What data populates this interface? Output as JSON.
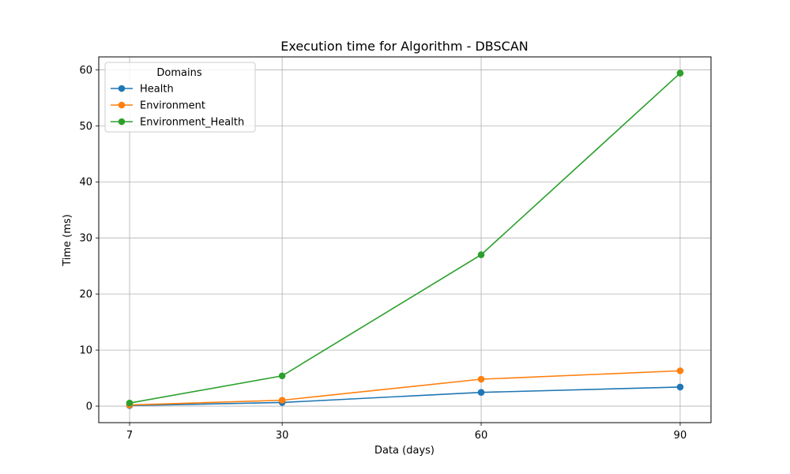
{
  "chart_data": {
    "type": "line",
    "title": "Execution time for Algorithm - DBSCAN",
    "xlabel": "Data (days)",
    "ylabel": "Time (ms)",
    "x": [
      7,
      30,
      60,
      90
    ],
    "x_ticks": [
      7,
      30,
      60,
      90
    ],
    "y_ticks": [
      0,
      10,
      20,
      30,
      40,
      50,
      60
    ],
    "xlim": [
      2.35,
      94.65
    ],
    "ylim": [
      -2.95,
      62.3
    ],
    "grid": true,
    "legend": {
      "title": "Domains",
      "placement": "top-left"
    },
    "series": [
      {
        "name": "Health",
        "color": "#1f77b4",
        "values": [
          0.1,
          0.65,
          2.45,
          3.4
        ]
      },
      {
        "name": "Environment",
        "color": "#ff7f0e",
        "values": [
          0.2,
          1.05,
          4.8,
          6.3
        ]
      },
      {
        "name": "Environment_Health",
        "color": "#2ca02c",
        "values": [
          0.55,
          5.4,
          27.0,
          59.4
        ]
      }
    ]
  }
}
